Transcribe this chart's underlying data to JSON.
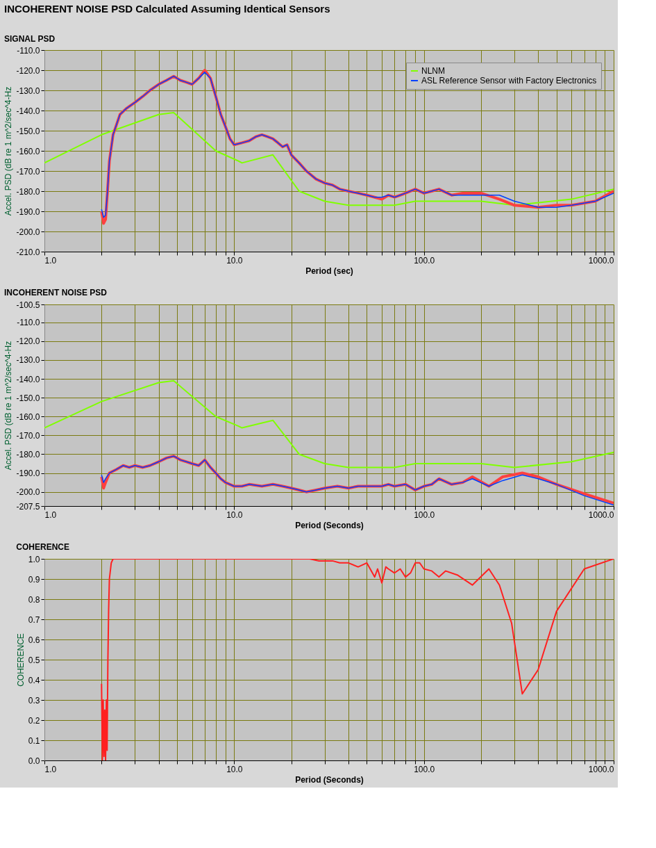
{
  "chart_data": [
    {
      "type": "line",
      "title": "INCOHERENT NOISE PSD Calculated Assuming Identical Sensors",
      "subtitle": "SIGNAL PSD",
      "xlabel": "Period (sec)",
      "ylabel": "Accel. PSD (dB re 1 m^2/sec^4-Hz",
      "log": "x",
      "grid": true,
      "legend": "top right",
      "xlim": [
        1,
        1000
      ],
      "ylim": [
        -210,
        -110
      ],
      "xticks": [
        {
          "value": 1,
          "label": "1.0"
        },
        {
          "value": 2,
          "label": null
        },
        {
          "value": 3,
          "label": null
        },
        {
          "value": 4,
          "label": null
        },
        {
          "value": 5,
          "label": null
        },
        {
          "value": 6,
          "label": null
        },
        {
          "value": 7,
          "label": null
        },
        {
          "value": 8,
          "label": null
        },
        {
          "value": 9,
          "label": null
        },
        {
          "value": 10,
          "label": "10.0"
        },
        {
          "value": 20,
          "label": null
        },
        {
          "value": 30,
          "label": null
        },
        {
          "value": 40,
          "label": null
        },
        {
          "value": 50,
          "label": null
        },
        {
          "value": 60,
          "label": null
        },
        {
          "value": 70,
          "label": null
        },
        {
          "value": 80,
          "label": null
        },
        {
          "value": 90,
          "label": null
        },
        {
          "value": 100,
          "label": "100.0"
        },
        {
          "value": 200,
          "label": null
        },
        {
          "value": 300,
          "label": null
        },
        {
          "value": 400,
          "label": null
        },
        {
          "value": 500,
          "label": null
        },
        {
          "value": 600,
          "label": null
        },
        {
          "value": 700,
          "label": null
        },
        {
          "value": 800,
          "label": null
        },
        {
          "value": 900,
          "label": null
        },
        {
          "value": 1000,
          "label": "1000.0"
        }
      ],
      "yticks": [
        {
          "value": -110,
          "label": "-110.0"
        },
        {
          "value": -120,
          "label": "-120.0"
        },
        {
          "value": -130,
          "label": "-130.0"
        },
        {
          "value": -140,
          "label": "-140.0"
        },
        {
          "value": -150,
          "label": "-150.0"
        },
        {
          "value": -160,
          "label": "-160.0"
        },
        {
          "value": -170,
          "label": "-170.0"
        },
        {
          "value": -180,
          "label": "-180.0"
        },
        {
          "value": -190,
          "label": "-190.0"
        },
        {
          "value": -200,
          "label": "-200.0"
        },
        {
          "value": -210,
          "label": "-210.0"
        }
      ],
      "series": [
        {
          "name": "NLNM",
          "color": "#80ff00",
          "x": [
            1,
            2,
            4,
            4.8,
            8,
            10.5,
            11,
            16,
            22,
            30,
            40,
            70,
            90,
            200,
            300,
            600,
            1000
          ],
          "values": [
            -166,
            -152,
            -142,
            -141,
            -160,
            -165,
            -166,
            -162,
            -180,
            -185,
            -187,
            -187,
            -185,
            -185,
            -187,
            -184,
            -179
          ]
        },
        {
          "color": "#ff4040",
          "x": [
            2,
            2.05,
            2.1,
            2.15,
            2.2,
            2.3,
            2.5,
            2.7,
            3,
            3.3,
            3.6,
            4,
            4.4,
            4.8,
            5.2,
            5.6,
            6,
            6.5,
            7,
            7.5,
            8,
            8.5,
            9,
            9.5,
            10,
            11,
            12,
            13,
            14,
            15,
            16,
            17,
            18,
            19,
            20,
            22,
            24,
            27,
            30,
            33,
            36,
            40,
            45,
            50,
            55,
            60,
            65,
            70,
            75,
            80,
            90,
            100,
            110,
            120,
            140,
            160,
            200,
            250,
            300,
            400,
            500,
            600,
            800,
            1000
          ],
          "values": [
            -190,
            -196,
            -194,
            -180,
            -165,
            -152,
            -142,
            -139,
            -136,
            -133,
            -130,
            -127,
            -125,
            -123,
            -125,
            -126,
            -127,
            -124,
            -120,
            -124,
            -133,
            -142,
            -148,
            -154,
            -157,
            -156,
            -155,
            -153,
            -152,
            -153,
            -154,
            -156,
            -158,
            -157,
            -162,
            -166,
            -170,
            -174,
            -176,
            -177,
            -179,
            -180,
            -181,
            -182,
            -183,
            -184,
            -182,
            -183,
            -182,
            -181,
            -179,
            -181,
            -180,
            -179,
            -182,
            -181,
            -181,
            -184,
            -187,
            -188,
            -187,
            -187,
            -185,
            -180
          ]
        },
        {
          "name": "ASL Reference Sensor with Factory Electronics",
          "color": "#0040ff",
          "x": [
            2,
            2.05,
            2.1,
            2.15,
            2.2,
            2.3,
            2.5,
            2.7,
            3,
            3.3,
            3.6,
            4,
            4.4,
            4.8,
            5.2,
            5.6,
            6,
            6.5,
            7,
            7.5,
            8,
            8.5,
            9,
            9.5,
            10,
            11,
            12,
            13,
            14,
            15,
            16,
            17,
            18,
            19,
            20,
            22,
            24,
            27,
            30,
            33,
            36,
            40,
            45,
            50,
            55,
            60,
            65,
            70,
            75,
            80,
            90,
            100,
            110,
            120,
            140,
            160,
            200,
            250,
            300,
            400,
            500,
            600,
            800,
            1000
          ],
          "values": [
            -189,
            -193,
            -192,
            -180,
            -165,
            -152,
            -142,
            -139,
            -136,
            -133,
            -130,
            -127,
            -125,
            -123,
            -125,
            -126,
            -127,
            -124,
            -121,
            -124,
            -133,
            -142,
            -148,
            -154,
            -157,
            -156,
            -155,
            -153,
            -152,
            -153,
            -154,
            -156,
            -158,
            -157,
            -162,
            -166,
            -170,
            -174,
            -176,
            -177,
            -179,
            -180,
            -181,
            -182,
            -183,
            -183,
            -182,
            -183,
            -182,
            -181,
            -179,
            -181,
            -180,
            -179,
            -182,
            -182,
            -182,
            -182,
            -185,
            -188,
            -188,
            -187,
            -185,
            -181
          ]
        }
      ]
    },
    {
      "type": "line",
      "subtitle": "INCOHERENT NOISE PSD",
      "xlabel": "Period (Seconds)",
      "ylabel": "Accel. PSD (dB re 1  m^2/sec^4-Hz",
      "log": "x",
      "grid": true,
      "xlim": [
        1,
        1000
      ],
      "ylim": [
        -207.5,
        -100.5
      ],
      "xticks": [
        {
          "value": 1,
          "label": "1.0"
        },
        {
          "value": 2,
          "label": null
        },
        {
          "value": 3,
          "label": null
        },
        {
          "value": 4,
          "label": null
        },
        {
          "value": 5,
          "label": null
        },
        {
          "value": 6,
          "label": null
        },
        {
          "value": 7,
          "label": null
        },
        {
          "value": 8,
          "label": null
        },
        {
          "value": 9,
          "label": null
        },
        {
          "value": 10,
          "label": "10.0"
        },
        {
          "value": 20,
          "label": null
        },
        {
          "value": 30,
          "label": null
        },
        {
          "value": 40,
          "label": null
        },
        {
          "value": 50,
          "label": null
        },
        {
          "value": 60,
          "label": null
        },
        {
          "value": 70,
          "label": null
        },
        {
          "value": 80,
          "label": null
        },
        {
          "value": 90,
          "label": null
        },
        {
          "value": 100,
          "label": "100.0"
        },
        {
          "value": 200,
          "label": null
        },
        {
          "value": 300,
          "label": null
        },
        {
          "value": 400,
          "label": null
        },
        {
          "value": 500,
          "label": null
        },
        {
          "value": 600,
          "label": null
        },
        {
          "value": 700,
          "label": null
        },
        {
          "value": 800,
          "label": null
        },
        {
          "value": 900,
          "label": null
        },
        {
          "value": 1000,
          "label": "1000.0"
        }
      ],
      "yticks": [
        {
          "value": -100.5,
          "label": "-100.5"
        },
        {
          "value": -110,
          "label": "-110.0"
        },
        {
          "value": -120,
          "label": "-120.0"
        },
        {
          "value": -130,
          "label": "-130.0"
        },
        {
          "value": -140,
          "label": "-140.0"
        },
        {
          "value": -150,
          "label": "-150.0"
        },
        {
          "value": -160,
          "label": "-160.0"
        },
        {
          "value": -170,
          "label": "-170.0"
        },
        {
          "value": -180,
          "label": "-180.0"
        },
        {
          "value": -190,
          "label": "-190.0"
        },
        {
          "value": -200,
          "label": "-200.0"
        },
        {
          "value": -207.5,
          "label": "-207.5"
        }
      ],
      "series": [
        {
          "color": "#80ff00",
          "x": [
            1,
            2,
            4,
            4.8,
            8,
            10.5,
            11,
            16,
            22,
            30,
            40,
            70,
            90,
            200,
            300,
            600,
            1000
          ],
          "values": [
            -166,
            -152,
            -142,
            -141,
            -160,
            -165,
            -166,
            -162,
            -180,
            -185,
            -187,
            -187,
            -185,
            -185,
            -187,
            -184,
            -179
          ]
        },
        {
          "color": "#ff4040",
          "x": [
            2,
            2.05,
            2.1,
            2.2,
            2.4,
            2.6,
            2.8,
            3,
            3.3,
            3.6,
            4,
            4.4,
            4.8,
            5.2,
            5.6,
            6,
            6.5,
            7,
            7.5,
            8,
            8.5,
            9,
            10,
            11,
            12,
            14,
            16,
            18,
            20,
            22,
            24,
            27,
            30,
            35,
            40,
            45,
            50,
            55,
            60,
            65,
            70,
            80,
            90,
            100,
            110,
            120,
            140,
            160,
            180,
            220,
            260,
            330,
            400,
            500,
            700,
            1000
          ],
          "values": [
            -192,
            -198,
            -195,
            -190,
            -188,
            -186,
            -187,
            -186,
            -187,
            -186,
            -184,
            -182,
            -181,
            -183,
            -184,
            -185,
            -186,
            -183,
            -187,
            -190,
            -193,
            -195,
            -197,
            -197,
            -196,
            -197,
            -196,
            -197,
            -198,
            -199,
            -200,
            -199,
            -198,
            -197,
            -198,
            -197,
            -197,
            -197,
            -197,
            -196,
            -197,
            -196,
            -199,
            -197,
            -196,
            -193,
            -196,
            -195,
            -192,
            -197,
            -192,
            -190,
            -192,
            -196,
            -201,
            -206
          ]
        },
        {
          "color": "#0040ff",
          "x": [
            2,
            2.05,
            2.1,
            2.2,
            2.4,
            2.6,
            2.8,
            3,
            3.3,
            3.6,
            4,
            4.4,
            4.8,
            5.2,
            5.6,
            6,
            6.5,
            7,
            7.5,
            8,
            8.5,
            9,
            10,
            11,
            12,
            14,
            16,
            18,
            20,
            22,
            24,
            27,
            30,
            35,
            40,
            45,
            50,
            55,
            60,
            65,
            70,
            80,
            90,
            100,
            110,
            120,
            140,
            160,
            180,
            220,
            260,
            330,
            400,
            500,
            700,
            1000
          ],
          "values": [
            -191,
            -195,
            -193,
            -190,
            -188,
            -186,
            -187,
            -186,
            -187,
            -186,
            -184,
            -182,
            -181,
            -183,
            -184,
            -185,
            -186,
            -183,
            -187,
            -190,
            -193,
            -195,
            -197,
            -197,
            -196,
            -197,
            -196,
            -197,
            -198,
            -199,
            -200,
            -199,
            -198,
            -197,
            -198,
            -197,
            -197,
            -197,
            -197,
            -196,
            -197,
            -196,
            -199,
            -197,
            -196,
            -193,
            -196,
            -195,
            -193,
            -197,
            -194,
            -191,
            -193,
            -196,
            -202,
            -207
          ]
        }
      ]
    },
    {
      "type": "line",
      "subtitle": "COHERENCE",
      "xlabel": "Period (Seconds)",
      "ylabel": "COHERENCE",
      "log": "x",
      "grid": true,
      "xlim": [
        1,
        1000
      ],
      "ylim": [
        0,
        1
      ],
      "xticks": [
        {
          "value": 1,
          "label": "1.0"
        },
        {
          "value": 2,
          "label": null
        },
        {
          "value": 3,
          "label": null
        },
        {
          "value": 4,
          "label": null
        },
        {
          "value": 5,
          "label": null
        },
        {
          "value": 6,
          "label": null
        },
        {
          "value": 7,
          "label": null
        },
        {
          "value": 8,
          "label": null
        },
        {
          "value": 9,
          "label": null
        },
        {
          "value": 10,
          "label": "10.0"
        },
        {
          "value": 20,
          "label": null
        },
        {
          "value": 30,
          "label": null
        },
        {
          "value": 40,
          "label": null
        },
        {
          "value": 50,
          "label": null
        },
        {
          "value": 60,
          "label": null
        },
        {
          "value": 70,
          "label": null
        },
        {
          "value": 80,
          "label": null
        },
        {
          "value": 90,
          "label": null
        },
        {
          "value": 100,
          "label": "100.0"
        },
        {
          "value": 200,
          "label": null
        },
        {
          "value": 300,
          "label": null
        },
        {
          "value": 400,
          "label": null
        },
        {
          "value": 500,
          "label": null
        },
        {
          "value": 600,
          "label": null
        },
        {
          "value": 700,
          "label": null
        },
        {
          "value": 800,
          "label": null
        },
        {
          "value": 900,
          "label": null
        },
        {
          "value": 1000,
          "label": "1000.0"
        }
      ],
      "yticks": [
        {
          "value": 0,
          "label": "0.0"
        },
        {
          "value": 0.1,
          "label": "0.1"
        },
        {
          "value": 0.2,
          "label": "0.2"
        },
        {
          "value": 0.3,
          "label": "0.3"
        },
        {
          "value": 0.4,
          "label": "0.4"
        },
        {
          "value": 0.5,
          "label": "0.5"
        },
        {
          "value": 0.6,
          "label": "0.6"
        },
        {
          "value": 0.7,
          "label": "0.7"
        },
        {
          "value": 0.8,
          "label": "0.8"
        },
        {
          "value": 0.9,
          "label": "0.9"
        },
        {
          "value": 1,
          "label": "1.0"
        }
      ],
      "series": [
        {
          "color": "#ff2020",
          "x": [
            2,
            2.02,
            2.04,
            2.06,
            2.08,
            2.1,
            2.12,
            2.14,
            2.16,
            2.18,
            2.2,
            2.25,
            2.3,
            2.4,
            3,
            10,
            25,
            28,
            30,
            33,
            36,
            40,
            45,
            50,
            55,
            57,
            60,
            63,
            65,
            70,
            75,
            80,
            85,
            90,
            95,
            100,
            110,
            120,
            130,
            150,
            180,
            220,
            250,
            290,
            330,
            400,
            500,
            700,
            1000
          ],
          "values": [
            0.38,
            0,
            0.3,
            0.02,
            0.25,
            0,
            0.3,
            0.05,
            0.5,
            0.75,
            0.9,
            0.98,
            1,
            1,
            1,
            1,
            1,
            0.99,
            0.99,
            0.99,
            0.98,
            0.98,
            0.96,
            0.98,
            0.91,
            0.95,
            0.88,
            0.96,
            0.95,
            0.93,
            0.95,
            0.91,
            0.93,
            0.98,
            0.98,
            0.95,
            0.94,
            0.91,
            0.94,
            0.92,
            0.87,
            0.95,
            0.87,
            0.68,
            0.33,
            0.45,
            0.74,
            0.95,
            1
          ]
        }
      ]
    }
  ]
}
